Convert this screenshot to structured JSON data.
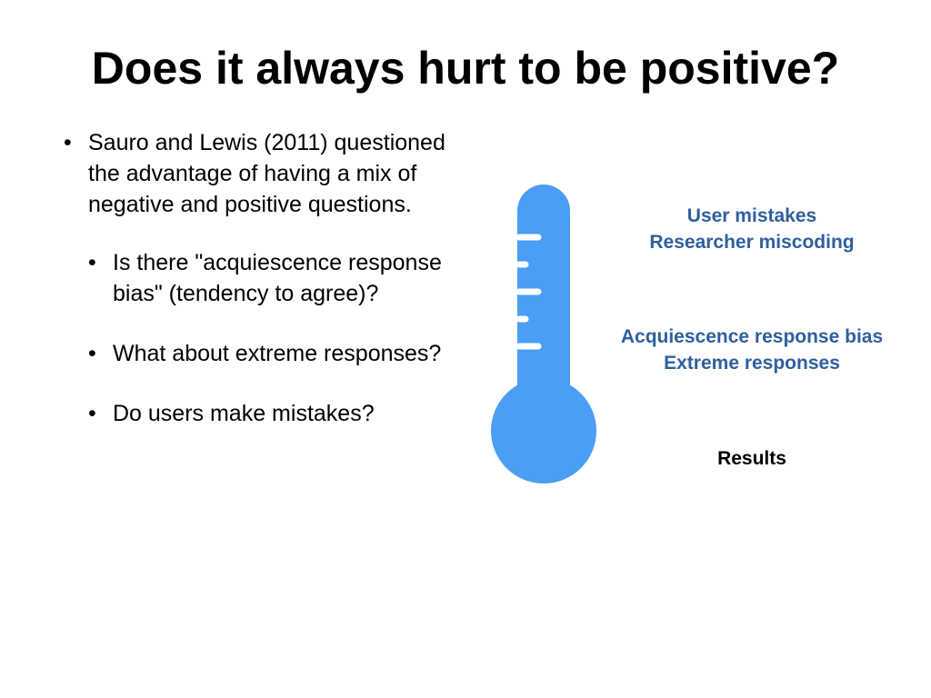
{
  "slide": {
    "title": "Does it always hurt to be positive?",
    "bullet_marker": "•",
    "main_bullet": "Sauro and Lewis (2011) questioned the advantage of having a mix of negative and positive questions.",
    "sub_bullets": [
      "Is there \"acquiescence response bias\" (tendency to agree)?",
      "What about extreme responses?",
      "Do users make mistakes?"
    ]
  },
  "thermometer": {
    "icon": "thermometer-icon",
    "color": "#4a9ef5",
    "label_color": "#2f5f9e",
    "labels": {
      "top": [
        "User mistakes",
        "Researcher miscoding"
      ],
      "middle": [
        "Acquiescence response bias",
        "Extreme responses"
      ],
      "bottom": [
        "Results"
      ]
    }
  }
}
